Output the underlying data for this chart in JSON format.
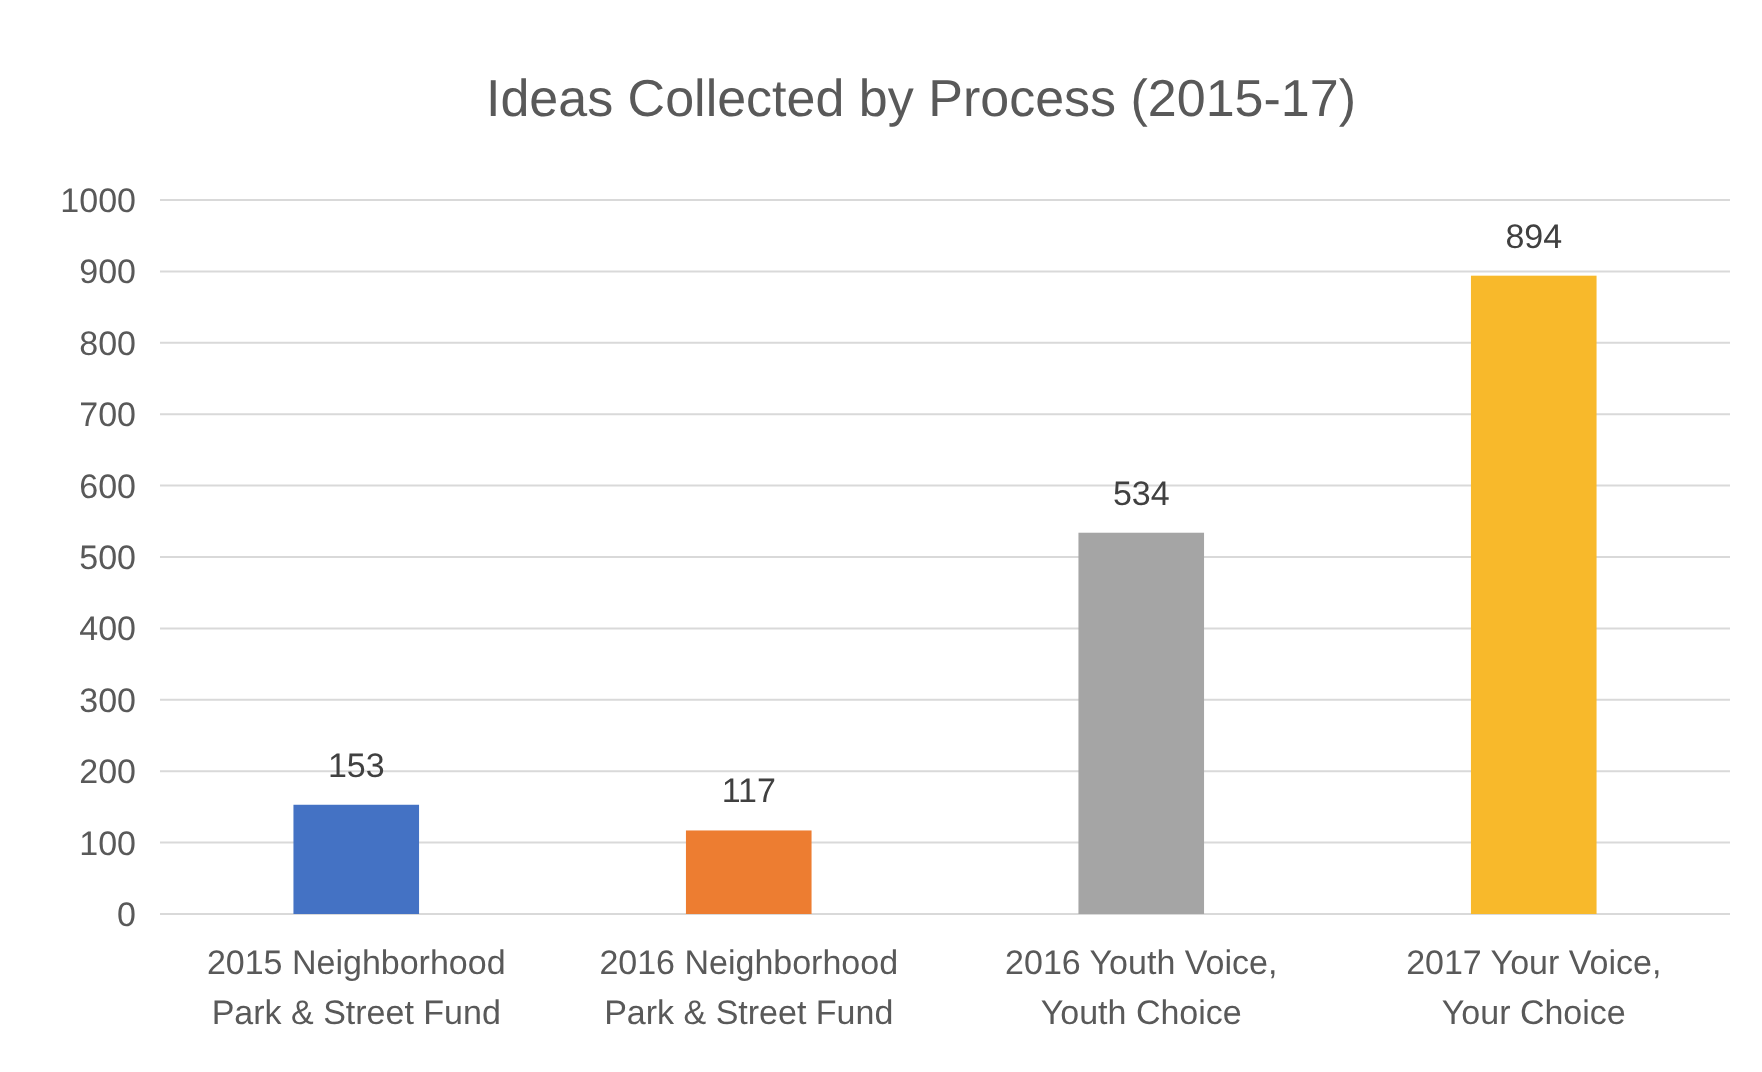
{
  "chart_data": {
    "type": "bar",
    "title": "Ideas Collected by Process (2015-17)",
    "categories": [
      "2015 Neighborhood Park & Street Fund",
      "2016 Neighborhood Park & Street Fund",
      "2016 Youth Voice, Youth Choice",
      "2017 Your Voice, Your Choice"
    ],
    "values": [
      153,
      117,
      534,
      894
    ],
    "colors": [
      "#4472c4",
      "#ed7d31",
      "#a5a5a5",
      "#f8b92b"
    ],
    "ylim": [
      0,
      1000
    ],
    "yticks": [
      0,
      100,
      200,
      300,
      400,
      500,
      600,
      700,
      800,
      900,
      1000
    ],
    "grid": "y",
    "data_labels": true
  }
}
